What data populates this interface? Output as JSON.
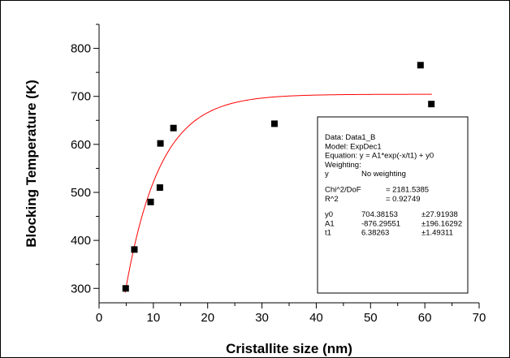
{
  "chart_data": {
    "type": "scatter",
    "title": "",
    "xlabel": "Cristallite size (nm)",
    "ylabel": "Blocking Temperature (K)",
    "xlim": [
      0,
      70
    ],
    "ylim": [
      270,
      850
    ],
    "xticks": [
      0,
      10,
      20,
      30,
      40,
      50,
      60,
      70
    ],
    "yticks": [
      300,
      400,
      500,
      600,
      700,
      800
    ],
    "grid": false,
    "points": [
      {
        "x": 4.9,
        "y": 300
      },
      {
        "x": 6.5,
        "y": 381
      },
      {
        "x": 9.5,
        "y": 480
      },
      {
        "x": 11.2,
        "y": 510
      },
      {
        "x": 11.3,
        "y": 602
      },
      {
        "x": 13.7,
        "y": 634
      },
      {
        "x": 32.3,
        "y": 643
      },
      {
        "x": 59.2,
        "y": 765
      },
      {
        "x": 61.2,
        "y": 684
      }
    ],
    "fit": {
      "model": "ExpDec1",
      "y0": 704.38153,
      "A1": -876.29551,
      "t1": 6.38263,
      "x_range": [
        4.8,
        61.3
      ],
      "color": "#ff0000"
    },
    "marker_color": "#000000"
  },
  "fit_box": {
    "lines": [
      [
        "Data: Data1_B"
      ],
      [
        "Model: ExpDec1"
      ],
      [
        "Equation: y = A1*exp(-x/t1) + y0"
      ],
      [
        "Weighting:"
      ],
      [
        "y",
        "No weighting"
      ],
      [],
      [
        "Chi^2/DoF",
        "= 2181.5385"
      ],
      [
        "R^2",
        "= 0.92749"
      ],
      [],
      [
        "y0",
        "704.38153",
        "±27.91938"
      ],
      [
        "A1",
        "-876.29551",
        "±196.16292"
      ],
      [
        "t1",
        "6.38263",
        "±1.49311"
      ]
    ]
  }
}
